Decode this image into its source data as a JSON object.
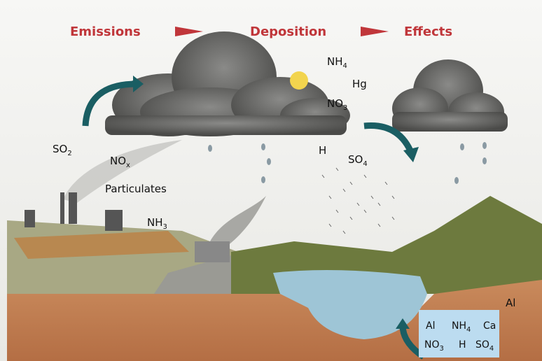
{
  "header": {
    "steps": [
      "Emissions",
      "Deposition",
      "Effects"
    ]
  },
  "labels": [
    {
      "text": "SO",
      "sub": "2"
    },
    {
      "text": "NO",
      "sub": "x"
    },
    {
      "text": "Particulates"
    },
    {
      "text": "NH",
      "sub": "3"
    },
    {
      "text": "NH",
      "sub": "4"
    },
    {
      "text": "Hg"
    },
    {
      "text": "NO",
      "sub": "3"
    },
    {
      "text": "H"
    },
    {
      "text": "SO",
      "sub": "4"
    },
    {
      "text": "Al"
    }
  ],
  "soil_box": {
    "items": [
      {
        "text": "Al"
      },
      {
        "text": "NH",
        "sub": "4"
      },
      {
        "text": "Ca"
      },
      {
        "text": "NO",
        "sub": "3"
      },
      {
        "text": "H"
      },
      {
        "text": "SO",
        "sub": "4"
      }
    ]
  }
}
